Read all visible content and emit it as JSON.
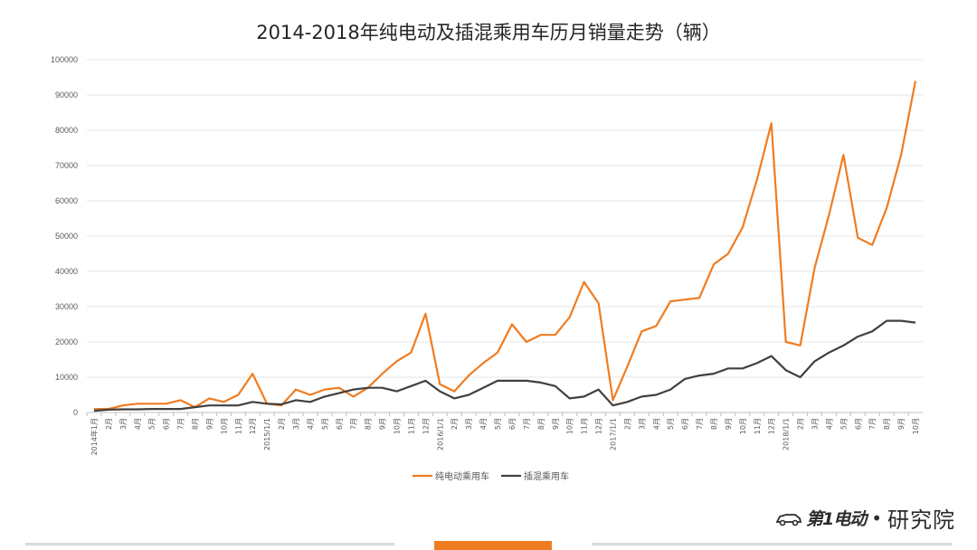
{
  "title": "2014-2018年纯电动及插混乘用车历月销量走势（辆）",
  "logo": {
    "brand": "第1电动",
    "separator": "•",
    "institute": "研究院"
  },
  "chart_data": {
    "type": "line",
    "title": "2014-2018年纯电动及插混乘用车历月销量走势（辆）",
    "xlabel": "",
    "ylabel": "",
    "ylim": [
      0,
      100000
    ],
    "ytick_step": 10000,
    "yticks": [
      "0",
      "10000",
      "20000",
      "30000",
      "40000",
      "50000",
      "60000",
      "70000",
      "80000",
      "90000",
      "100000"
    ],
    "grid": true,
    "legend_position": "bottom",
    "categories": [
      "2014年1月",
      "2月",
      "3月",
      "4月",
      "5月",
      "6月",
      "7月",
      "8月",
      "9月",
      "10月",
      "11月",
      "12月",
      "2015/1/1",
      "2月",
      "3月",
      "4月",
      "5月",
      "6月",
      "7月",
      "8月",
      "9月",
      "10月",
      "11月",
      "12月",
      "2016/1/1",
      "2月",
      "3月",
      "4月",
      "5月",
      "6月",
      "7月",
      "8月",
      "9月",
      "10月",
      "11月",
      "12月",
      "2017/1/1",
      "2月",
      "3月",
      "4月",
      "5月",
      "6月",
      "7月",
      "8月",
      "9月",
      "10月",
      "11月",
      "12月",
      "2018/1/1",
      "2月",
      "3月",
      "4月",
      "5月",
      "6月",
      "7月",
      "8月",
      "9月",
      "10月"
    ],
    "series": [
      {
        "name": "纯电动乘用车",
        "color": "#f07c21",
        "values": [
          1000,
          1000,
          2000,
          2500,
          2500,
          2500,
          3500,
          1500,
          4000,
          3000,
          5000,
          11000,
          2500,
          2000,
          6500,
          5000,
          6500,
          7000,
          4500,
          7000,
          11000,
          14500,
          17000,
          28000,
          8000,
          6000,
          10500,
          14000,
          17000,
          25000,
          20000,
          22000,
          22000,
          27000,
          37000,
          31000,
          3500,
          13000,
          23000,
          24500,
          31500,
          32000,
          32500,
          42000,
          45000,
          52500,
          66000,
          82000,
          20000,
          19000,
          41000,
          56000,
          73000,
          49500,
          47500,
          58000,
          73000,
          94000
        ]
      },
      {
        "name": "插混乘用车",
        "color": "#404040",
        "values": [
          500,
          800,
          900,
          900,
          1000,
          1000,
          1000,
          1500,
          2000,
          2000,
          2000,
          3000,
          2500,
          2300,
          3500,
          3000,
          4500,
          5500,
          6500,
          7000,
          7000,
          6000,
          7500,
          9000,
          6000,
          4000,
          5000,
          7000,
          9000,
          9000,
          9000,
          8500,
          7500,
          4000,
          4500,
          6500,
          2000,
          3000,
          4500,
          5000,
          6500,
          9500,
          10500,
          11000,
          12500,
          12500,
          14000,
          16000,
          12000,
          10000,
          14500,
          17000,
          19000,
          21500,
          23000,
          26000,
          26000,
          25500
        ]
      }
    ]
  }
}
